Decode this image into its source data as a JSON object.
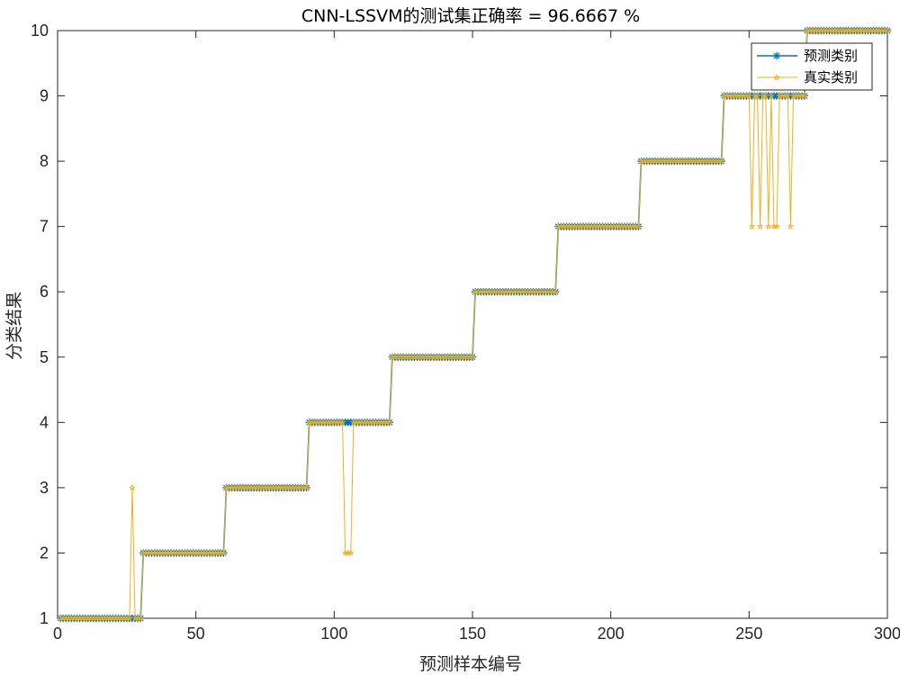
{
  "chart_data": {
    "type": "line",
    "title": "CNN-LSSVM的测试集正确率 = 96.6667 %",
    "xlabel": "预测样本编号",
    "ylabel": "分类结果",
    "xlim": [
      0,
      300
    ],
    "ylim": [
      1,
      10
    ],
    "xticks": [
      "0",
      "50",
      "100",
      "150",
      "200",
      "250",
      "300"
    ],
    "yticks": [
      "1",
      "2",
      "3",
      "4",
      "5",
      "6",
      "7",
      "8",
      "9",
      "10"
    ],
    "grid": false,
    "legend_position": "top-right",
    "samples_per_class": 30,
    "classes": [
      1,
      2,
      3,
      4,
      5,
      6,
      7,
      8,
      9,
      10
    ],
    "series": [
      {
        "name": "预测类别",
        "color": "#0072BD",
        "marker": "asterisk",
        "note": "each sample predicted as its block class"
      },
      {
        "name": "真实类别",
        "color": "#EDB120",
        "marker": "pentagram",
        "deviations": [
          {
            "x": 27,
            "y": 3
          },
          {
            "x": 104,
            "y": 2
          },
          {
            "x": 105,
            "y": 2
          },
          {
            "x": 106,
            "y": 2
          },
          {
            "x": 251,
            "y": 7
          },
          {
            "x": 254,
            "y": 7
          },
          {
            "x": 257,
            "y": 7
          },
          {
            "x": 259,
            "y": 7
          },
          {
            "x": 260,
            "y": 7
          },
          {
            "x": 265,
            "y": 7
          }
        ]
      }
    ]
  }
}
